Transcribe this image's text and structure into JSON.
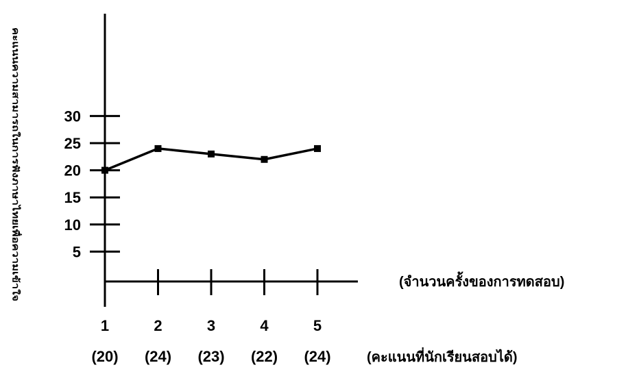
{
  "chart_data": {
    "type": "line",
    "title": "",
    "ylabel": "คะแนนความสามารถในการฟังภาษาไทยเพื่อความเข้าใจ",
    "xlabel": "(จำนวนครั้งของการทดสอบ)",
    "secondary_xlabel": "(คะแนนที่นักเรียนสอบได้)",
    "x": [
      1,
      2,
      3,
      4,
      5
    ],
    "x_tick_labels": [
      "1",
      "2",
      "3",
      "4",
      "5"
    ],
    "score_labels": [
      "(20)",
      "(24)",
      "(23)",
      "(22)",
      "(24)"
    ],
    "y": [
      20,
      24,
      23,
      22,
      24
    ],
    "y_ticks": [
      5,
      10,
      15,
      20,
      25,
      30
    ],
    "ylim": [
      0,
      30
    ],
    "grid": false,
    "line_color": "#000000",
    "marker": "square"
  }
}
